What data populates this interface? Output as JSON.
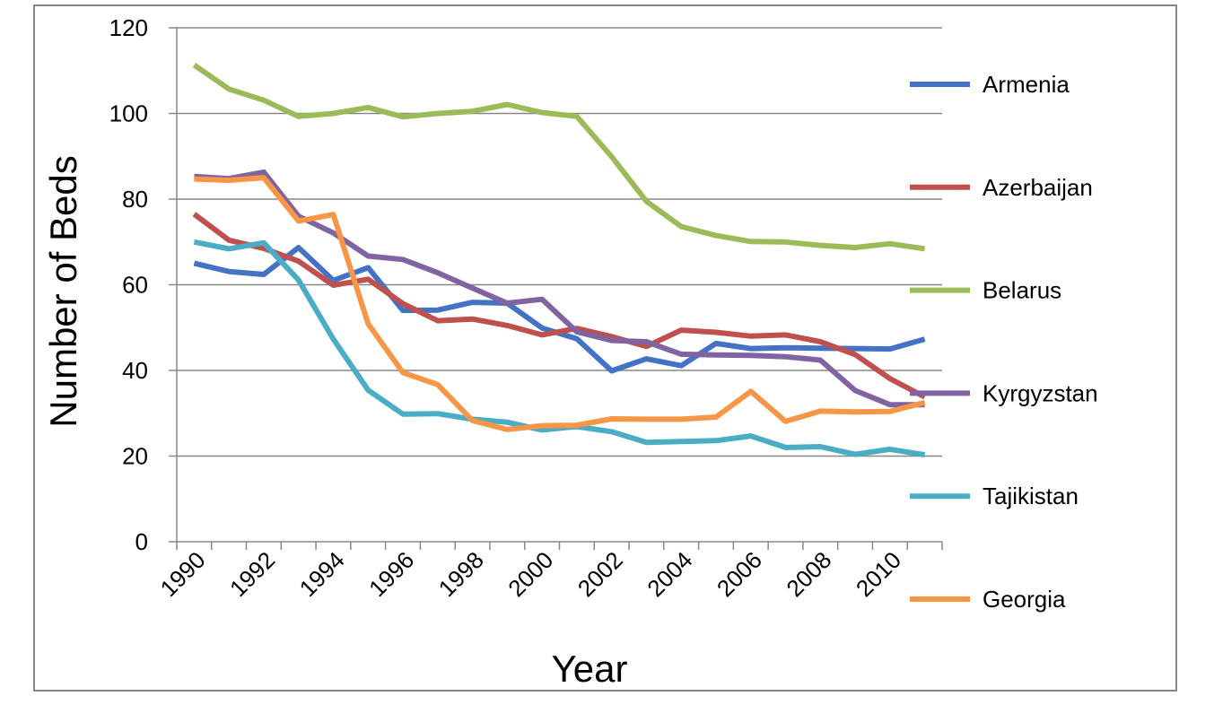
{
  "chart_data": {
    "type": "line",
    "xlabel": "Year",
    "ylabel": "Number of Beds",
    "ylim": [
      0,
      120
    ],
    "yticks": [
      0,
      20,
      40,
      60,
      80,
      100,
      120
    ],
    "x": [
      1990,
      1991,
      1992,
      1993,
      1994,
      1995,
      1996,
      1997,
      1998,
      1999,
      2000,
      2001,
      2002,
      2003,
      2004,
      2005,
      2006,
      2007,
      2008,
      2009,
      2010,
      2011
    ],
    "xtick_labels": [
      "1990",
      "1992",
      "1994",
      "1996",
      "1998",
      "2000",
      "2002",
      "2004",
      "2006",
      "2008",
      "2010"
    ],
    "grid": "horizontal",
    "legend_position": "right",
    "series": [
      {
        "name": "Armenia",
        "color": "#4472C4",
        "values": [
          65.0,
          63.1,
          62.4,
          68.7,
          61.0,
          64.0,
          54.0,
          54.1,
          55.9,
          55.7,
          49.9,
          47.4,
          39.9,
          42.7,
          41.1,
          46.3,
          45.1,
          45.3,
          45.2,
          45.1,
          45.0,
          47.3
        ]
      },
      {
        "name": "Azerbaijan",
        "color": "#C0504D",
        "values": [
          76.5,
          70.4,
          68.5,
          65.5,
          59.9,
          61.3,
          55.6,
          51.6,
          52.0,
          50.5,
          48.3,
          49.8,
          47.9,
          45.6,
          49.4,
          48.9,
          48.0,
          48.3,
          46.7,
          43.7,
          38.1,
          33.8
        ]
      },
      {
        "name": "Belarus",
        "color": "#9BBB59",
        "values": [
          111.3,
          105.7,
          103.1,
          99.3,
          100.0,
          101.4,
          99.2,
          100.0,
          100.5,
          102.1,
          100.2,
          99.3,
          89.9,
          79.5,
          73.6,
          71.5,
          70.1,
          70.0,
          69.2,
          68.7,
          69.6,
          68.4
        ]
      },
      {
        "name": "Kyrgyzstan",
        "color": "#8064A2",
        "values": [
          85.3,
          84.8,
          86.3,
          76.0,
          72.1,
          66.7,
          65.9,
          62.8,
          59.2,
          55.7,
          56.6,
          49.0,
          47.0,
          46.7,
          43.8,
          43.6,
          43.5,
          43.2,
          42.4,
          35.3,
          32.0,
          32.0
        ]
      },
      {
        "name": "Tajikistan",
        "color": "#4BACC6",
        "values": [
          70.0,
          68.4,
          69.8,
          61.1,
          47.3,
          35.4,
          29.8,
          29.9,
          28.6,
          27.9,
          26.1,
          26.9,
          25.7,
          23.2,
          23.4,
          23.6,
          24.7,
          22.0,
          22.2,
          20.4,
          21.6,
          20.3
        ]
      },
      {
        "name": "Georgia",
        "color": "#F79646",
        "values": [
          84.7,
          84.4,
          85.0,
          74.9,
          76.4,
          50.9,
          39.5,
          36.7,
          28.3,
          26.2,
          27.1,
          27.2,
          28.7,
          28.6,
          28.6,
          29.1,
          35.1,
          28.1,
          30.5,
          30.3,
          30.4,
          32.5
        ]
      }
    ]
  }
}
